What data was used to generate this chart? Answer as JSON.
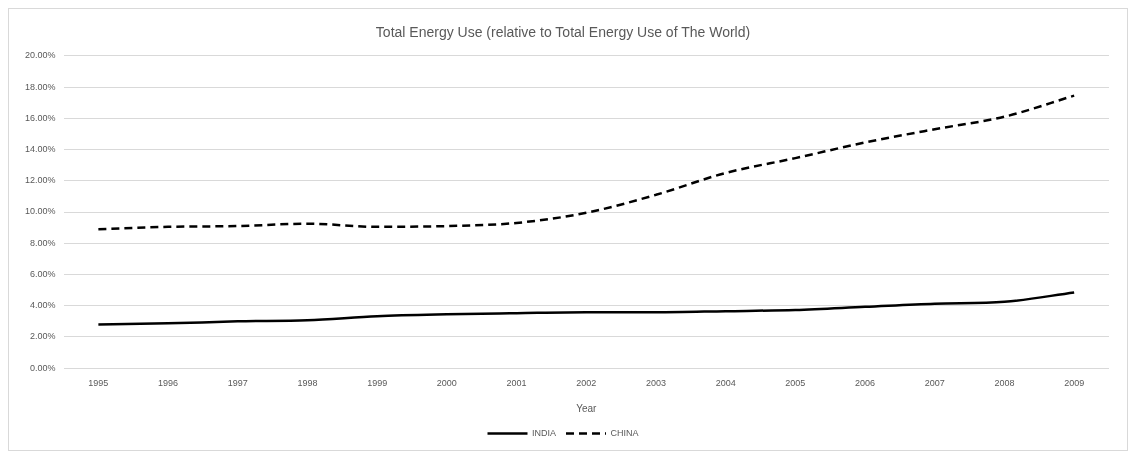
{
  "chart_data": {
    "type": "line",
    "title": "Total Energy Use (relative to Total Energy Use of The World)",
    "xlabel": "Year",
    "categories": [
      "1995",
      "1996",
      "1997",
      "1998",
      "1999",
      "2000",
      "2001",
      "2002",
      "2003",
      "2004",
      "2005",
      "2006",
      "2007",
      "2008",
      "2009"
    ],
    "series": [
      {
        "name": "INDIA",
        "color": "#000000",
        "line_style": "solid",
        "values": [
          2.8,
          2.87,
          3.0,
          3.07,
          3.33,
          3.45,
          3.52,
          3.58,
          3.58,
          3.65,
          3.73,
          3.93,
          4.13,
          4.25,
          4.85
        ]
      },
      {
        "name": "CHINA",
        "color": "#000000",
        "line_style": "dashed",
        "values": [
          8.9,
          9.05,
          9.1,
          9.25,
          9.05,
          9.1,
          9.3,
          9.95,
          11.1,
          12.5,
          13.45,
          14.45,
          15.3,
          16.1,
          17.45
        ]
      }
    ],
    "ylim": [
      0,
      20
    ],
    "yticks": [
      {
        "value": 0,
        "label": "0.00%"
      },
      {
        "value": 2,
        "label": "2.00%"
      },
      {
        "value": 4,
        "label": "4.00%"
      },
      {
        "value": 6,
        "label": "6.00%"
      },
      {
        "value": 8,
        "label": "8.00%"
      },
      {
        "value": 10,
        "label": "10.00%"
      },
      {
        "value": 12,
        "label": "12.00%"
      },
      {
        "value": 14,
        "label": "14.00%"
      },
      {
        "value": 16,
        "label": "16.00%"
      },
      {
        "value": 18,
        "label": "18.00%"
      },
      {
        "value": 20,
        "label": "20.00%"
      }
    ],
    "grid": "y",
    "legend": "bottom",
    "marker": "none"
  }
}
